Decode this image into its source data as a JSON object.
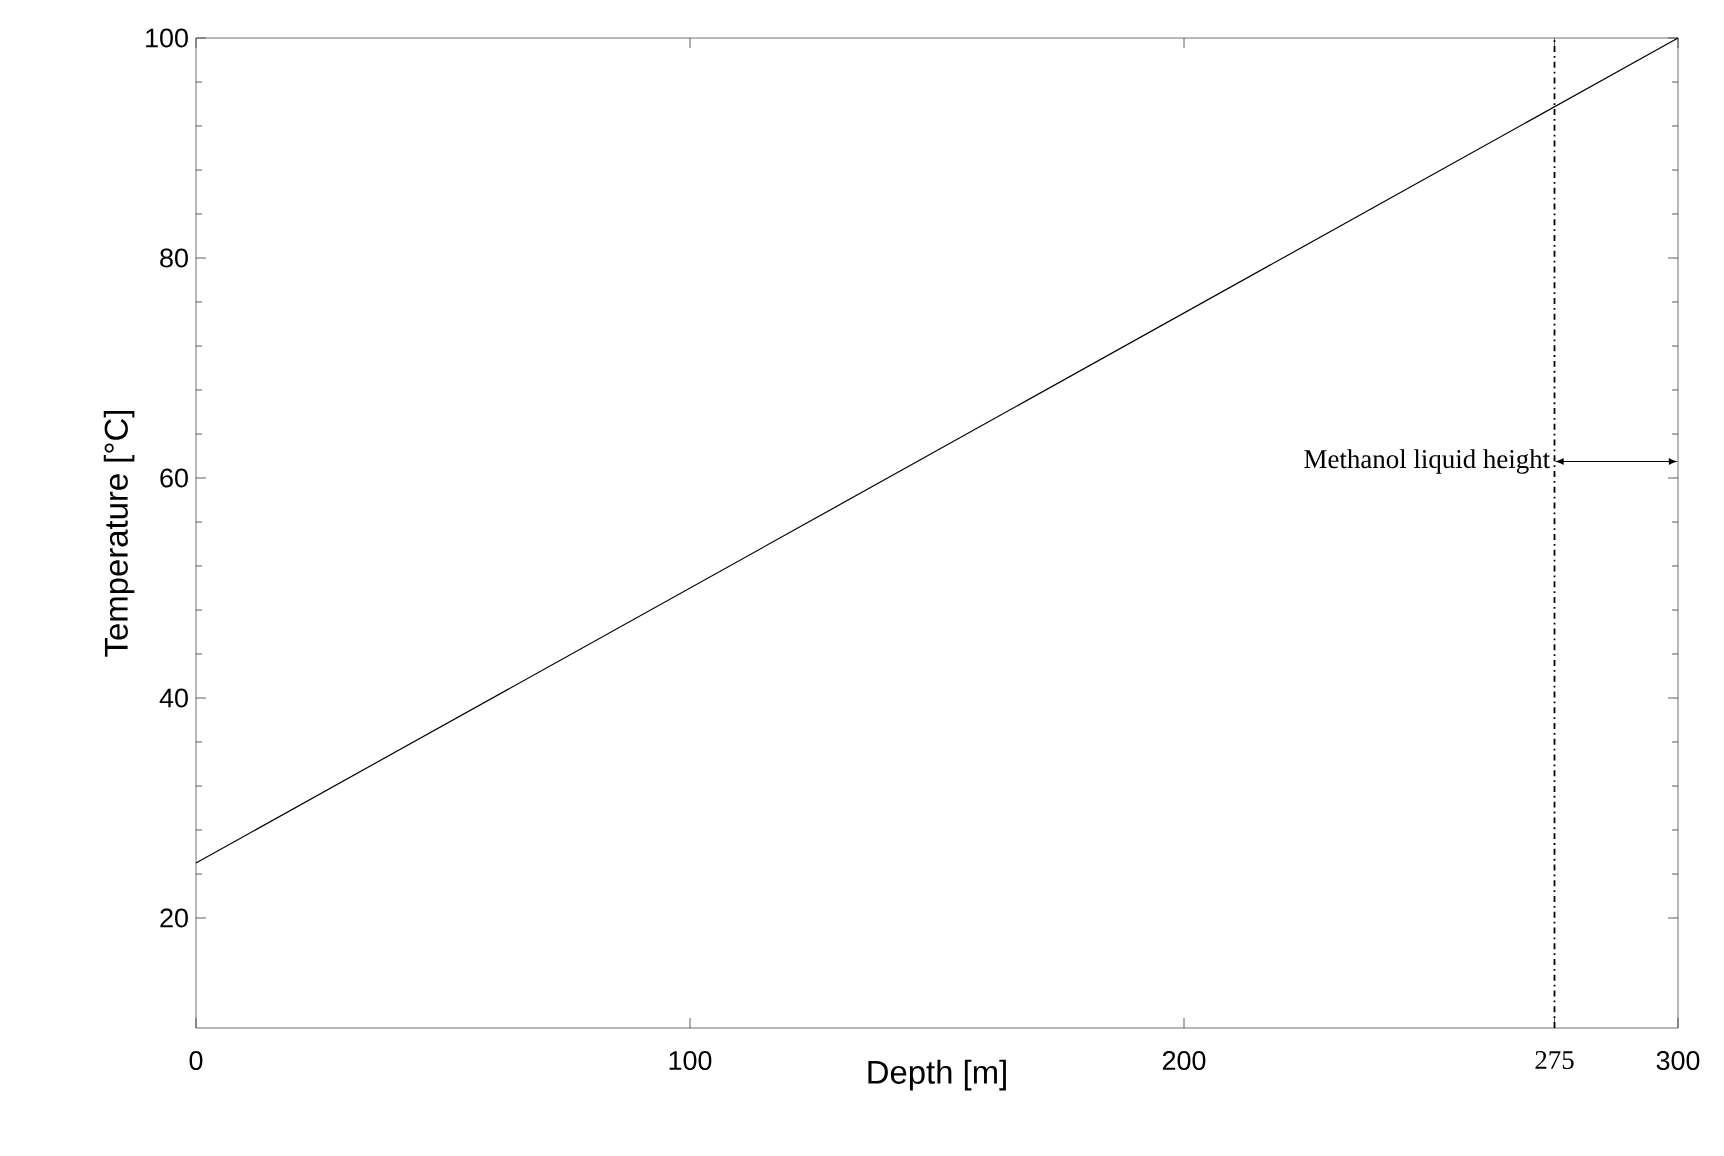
{
  "chart_data": {
    "type": "line",
    "xlabel": "Depth [m]",
    "ylabel": "Temperature [°C]",
    "x": [
      0,
      300
    ],
    "series": [
      {
        "color": "#000000",
        "values": [
          25,
          100
        ]
      }
    ],
    "xlim": [
      0,
      300
    ],
    "ylim": [
      10,
      100
    ],
    "xticks": [
      0,
      100,
      200,
      275,
      300
    ],
    "yticks": [
      20,
      40,
      60,
      80,
      100
    ],
    "ref_lines": [
      {
        "axis": "x",
        "value": 275,
        "color": "#000000",
        "line_style": "dashdot"
      }
    ],
    "annotations": [
      {
        "text": "Methanol liquid height",
        "x": 275,
        "y": 61.5
      }
    ],
    "grid": false,
    "marker": "none",
    "line_style": "solid"
  }
}
